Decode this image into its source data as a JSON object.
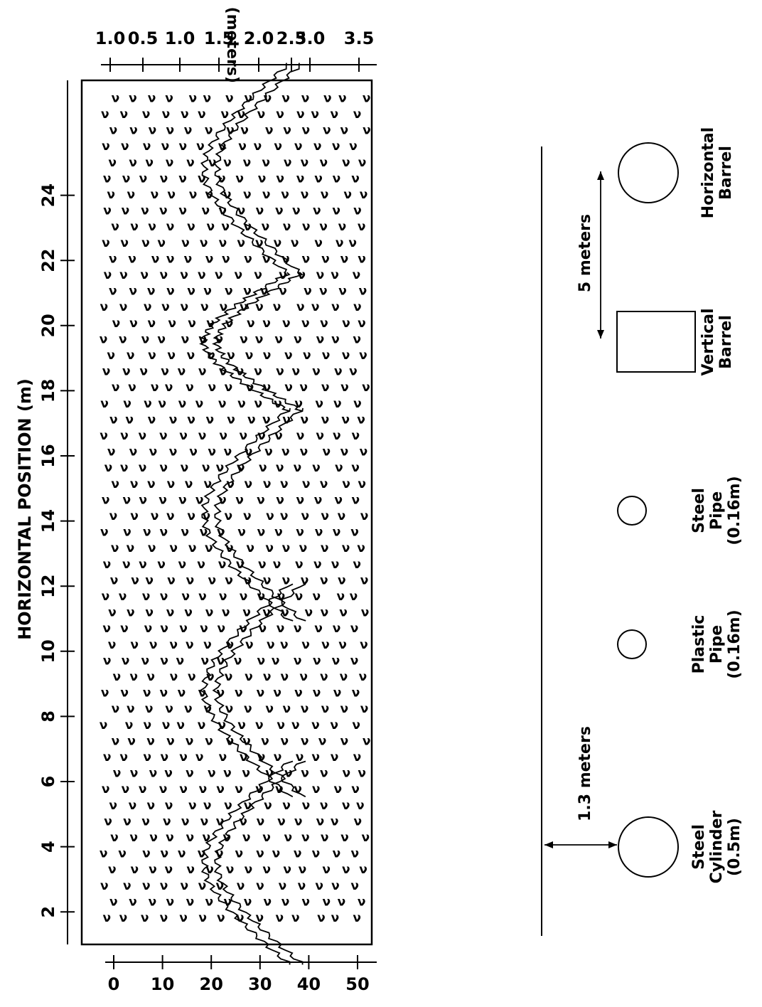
{
  "axes": {
    "horizontal_position_label": "HORIZONTAL POSITION (m)",
    "depth_label": "DEPTH (meters)",
    "position_ticks": [
      "2",
      "4",
      "6",
      "8",
      "10",
      "12",
      "14",
      "16",
      "18",
      "20",
      "22",
      "24"
    ],
    "depth_ticks": [
      "1.0",
      "0.5",
      "1.0",
      "1.5",
      "2.0",
      "2.5",
      "3.0",
      "3.5"
    ],
    "time_ticks": [
      "0",
      "10",
      "20",
      "30",
      "40",
      "50"
    ]
  },
  "schematic": {
    "depth_marker": "1.3 meters",
    "spacing_marker": "5 meters",
    "objects": [
      {
        "line1": "Steel",
        "line2": "Cylinder",
        "line3": "(0.5m)",
        "shape": "large-circle"
      },
      {
        "line1": "Plastic",
        "line2": "Pipe",
        "line3": "(0.16m)",
        "shape": "small-circle"
      },
      {
        "line1": "Steel",
        "line2": "Pipe",
        "line3": "(0.16m)",
        "shape": "small-circle"
      },
      {
        "line1": "Vertical",
        "line2": "Barrel",
        "line3": "",
        "shape": "rectangle"
      },
      {
        "line1": "Horizontal",
        "line2": "Barrel",
        "line3": "",
        "shape": "large-circle"
      }
    ]
  },
  "data_plot": {
    "hyperbola_apexes_m": [
      3.5,
      8.8,
      14.2,
      19.5,
      24.8
    ],
    "apex_time_value": 20,
    "background_mark_glyph": "ν"
  }
}
